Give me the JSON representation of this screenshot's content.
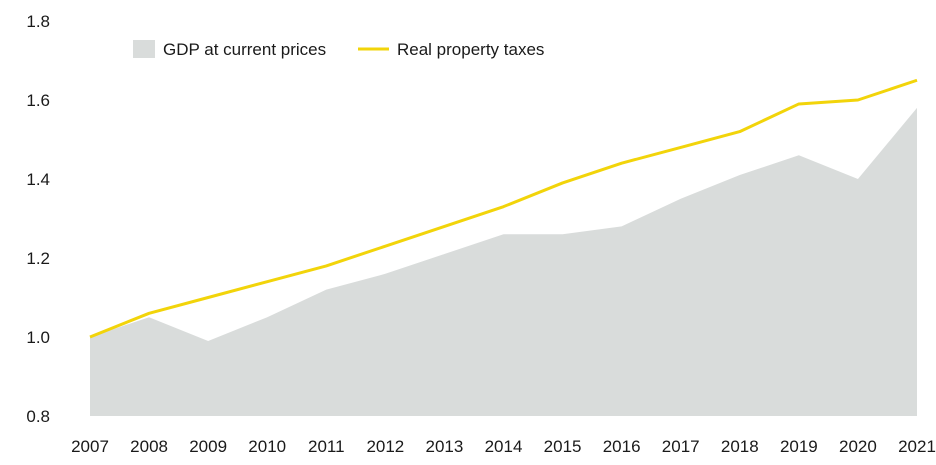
{
  "chart_data": {
    "type": "area",
    "x": [
      "2007",
      "2008",
      "2009",
      "2010",
      "2011",
      "2012",
      "2013",
      "2014",
      "2015",
      "2016",
      "2017",
      "2018",
      "2019",
      "2020",
      "2021"
    ],
    "series": [
      {
        "name": "GDP at current prices",
        "kind": "area",
        "color": "#d9dcdb",
        "values": [
          1.0,
          1.05,
          0.99,
          1.05,
          1.12,
          1.16,
          1.21,
          1.26,
          1.26,
          1.28,
          1.35,
          1.41,
          1.46,
          1.4,
          1.58
        ]
      },
      {
        "name": "Real property taxes",
        "kind": "line",
        "color": "#f2d40a",
        "values": [
          1.0,
          1.06,
          1.1,
          1.14,
          1.18,
          1.23,
          1.28,
          1.33,
          1.39,
          1.44,
          1.48,
          1.52,
          1.59,
          1.6,
          1.65
        ]
      }
    ],
    "yticks": [
      "0.8",
      "1.0",
      "1.2",
      "1.4",
      "1.6",
      "1.8"
    ],
    "ylim": [
      0.8,
      1.8
    ],
    "grid": false,
    "legend_position": "top-left"
  }
}
